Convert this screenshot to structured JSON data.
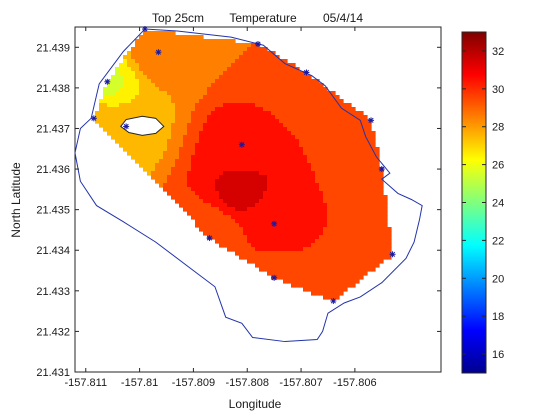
{
  "chart_data": {
    "type": "heatmap",
    "title_parts": [
      "Top 25cm",
      "Temperature",
      "05/4/14"
    ],
    "xlabel": "Longitude",
    "ylabel": "North Latitude",
    "xlim": [
      -157.8112,
      -157.8044
    ],
    "ylim": [
      21.431,
      21.4395
    ],
    "x_ticks": [
      -157.811,
      -157.81,
      -157.809,
      -157.808,
      -157.807,
      -157.806
    ],
    "x_tick_labels": [
      "-157.811",
      "-157.81",
      "-157.809",
      "-157.808",
      "-157.807",
      "-157.806"
    ],
    "y_ticks": [
      21.431,
      21.432,
      21.433,
      21.434,
      21.435,
      21.436,
      21.437,
      21.438,
      21.439
    ],
    "y_tick_labels": [
      "21.431",
      "21.432",
      "21.433",
      "21.434",
      "21.435",
      "21.436",
      "21.437",
      "21.438",
      "21.439"
    ],
    "colorbar": {
      "range": [
        15,
        33
      ],
      "ticks": [
        16,
        18,
        20,
        22,
        24,
        26,
        28,
        30,
        32
      ],
      "tick_labels": [
        "16",
        "18",
        "20",
        "22",
        "24",
        "26",
        "28",
        "30",
        "32"
      ],
      "colormap": "jet"
    },
    "colors": {
      "shoreline": "#2233aa",
      "marker": "#1a1aa0",
      "axes": "#262626"
    },
    "shoreline": [
      [
        -157.8109,
        21.43725
      ],
      [
        -157.81075,
        21.4381
      ],
      [
        -157.8103,
        21.4389
      ],
      [
        -157.8099,
        21.43945
      ],
      [
        -157.8093,
        21.4394
      ],
      [
        -157.8083,
        21.43925
      ],
      [
        -157.8077,
        21.43905
      ],
      [
        -157.8073,
        21.4386
      ],
      [
        -157.8068,
        21.4383
      ],
      [
        -157.80655,
        21.43805
      ],
      [
        -157.80625,
        21.4375
      ],
      [
        -157.8059,
        21.4372
      ],
      [
        -157.8058,
        21.4368
      ],
      [
        -157.8056,
        21.4363
      ],
      [
        -157.80535,
        21.4359
      ],
      [
        -157.8055,
        21.43575
      ],
      [
        -157.8052,
        21.4354
      ],
      [
        -157.80495,
        21.43525
      ],
      [
        -157.80475,
        21.4351
      ],
      [
        -157.8048,
        21.43475
      ],
      [
        -157.8049,
        21.4342
      ],
      [
        -157.80505,
        21.4338
      ],
      [
        -157.8055,
        21.4332
      ],
      [
        -157.8059,
        21.43285
      ],
      [
        -157.8062,
        21.4327
      ],
      [
        -157.8065,
        21.43245
      ],
      [
        -157.8066,
        21.432
      ],
      [
        -157.8067,
        21.4318
      ],
      [
        -157.8073,
        21.43175
      ],
      [
        -157.8079,
        21.43185
      ],
      [
        -157.8081,
        21.4322
      ],
      [
        -157.8084,
        21.43235
      ],
      [
        -157.8086,
        21.4331
      ],
      [
        -157.8091,
        21.4336
      ],
      [
        -157.8097,
        21.4342
      ],
      [
        -157.8103,
        21.4347
      ],
      [
        -157.8108,
        21.4351
      ],
      [
        -157.8111,
        21.4357
      ],
      [
        -157.8112,
        21.4364
      ],
      [
        -157.8111,
        21.437
      ],
      [
        -157.8109,
        21.43725
      ]
    ],
    "island": [
      [
        -157.8097,
        21.43725
      ],
      [
        -157.80955,
        21.43705
      ],
      [
        -157.8097,
        21.43688
      ],
      [
        -157.80995,
        21.43683
      ],
      [
        -157.8102,
        21.4369
      ],
      [
        -157.81035,
        21.43705
      ],
      [
        -157.81025,
        21.43722
      ],
      [
        -157.80995,
        21.4373
      ],
      [
        -157.8097,
        21.43725
      ]
    ],
    "sample_points": [
      [
        -157.81085,
        21.43725
      ],
      [
        -157.8106,
        21.43815
      ],
      [
        -157.8099,
        21.43945
      ],
      [
        -157.80965,
        21.43888
      ],
      [
        -157.81025,
        21.43705
      ],
      [
        -157.8078,
        21.43908
      ],
      [
        -157.8069,
        21.43838
      ],
      [
        -157.8057,
        21.4372
      ],
      [
        -157.8055,
        21.436
      ],
      [
        -157.8053,
        21.4339
      ],
      [
        -157.8064,
        21.43275
      ],
      [
        -157.8075,
        21.43332
      ],
      [
        -157.8075,
        21.43465
      ],
      [
        -157.8087,
        21.4343
      ],
      [
        -157.8081,
        21.4366
      ]
    ],
    "sample_temps": [
      27.3,
      25.9,
      28.3,
      28.5,
      27.5,
      29.0,
      29.0,
      29.2,
      29.3,
      29.5,
      29.2,
      29.5,
      30.5,
      29.0,
      30.5
    ],
    "warm_center": [
      -157.8081,
      21.4355
    ],
    "warm_center_temp": 31.2
  }
}
